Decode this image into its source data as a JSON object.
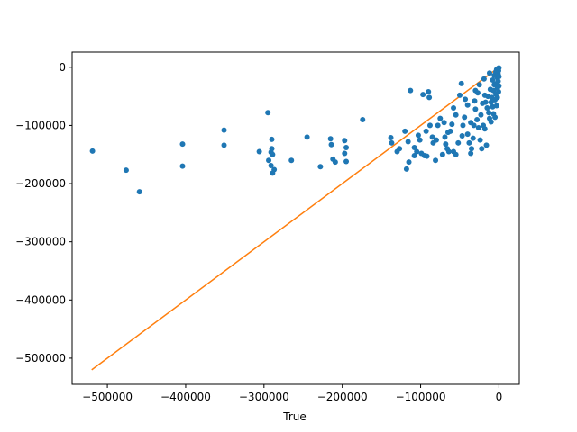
{
  "chart_data": {
    "type": "scatter",
    "title": "",
    "xlabel": "True",
    "ylabel": "",
    "xlim": [
      -545000,
      26000
    ],
    "ylim": [
      -545000,
      26000
    ],
    "grid": false,
    "colors": {
      "points": "#1f77b4",
      "line": "#ff7f0e",
      "axes": "#000000"
    },
    "xticks": [
      {
        "value": -500000,
        "label": "−500000"
      },
      {
        "value": -400000,
        "label": "−400000"
      },
      {
        "value": -300000,
        "label": "−300000"
      },
      {
        "value": -200000,
        "label": "−200000"
      },
      {
        "value": -100000,
        "label": "−100000"
      },
      {
        "value": 0,
        "label": "0"
      }
    ],
    "yticks": [
      {
        "value": 0,
        "label": "0"
      },
      {
        "value": -100000,
        "label": "−100000"
      },
      {
        "value": -200000,
        "label": "−200000"
      },
      {
        "value": -300000,
        "label": "−300000"
      },
      {
        "value": -400000,
        "label": "−400000"
      },
      {
        "value": -500000,
        "label": "−500000"
      }
    ],
    "reference_line": {
      "x": [
        -520000,
        0
      ],
      "y": [
        -520000,
        0
      ]
    },
    "series": [
      {
        "points": [
          [
            -519000,
            -144000
          ],
          [
            -476000,
            -177000
          ],
          [
            -459000,
            -214000
          ],
          [
            -404000,
            -132000
          ],
          [
            -404000,
            -170000
          ],
          [
            -351000,
            -108000
          ],
          [
            -351000,
            -134000
          ],
          [
            -295000,
            -78000
          ],
          [
            -306000,
            -145000
          ],
          [
            -291000,
            -146000
          ],
          [
            -294000,
            -160000
          ],
          [
            -289000,
            -150000
          ],
          [
            -291000,
            -169000
          ],
          [
            -287000,
            -176000
          ],
          [
            -289000,
            -182000
          ],
          [
            -290000,
            -124000
          ],
          [
            -290000,
            -140000
          ],
          [
            -265000,
            -160000
          ],
          [
            -245000,
            -120000
          ],
          [
            -228000,
            -171000
          ],
          [
            -215000,
            -123000
          ],
          [
            -214000,
            -133000
          ],
          [
            -212000,
            -158000
          ],
          [
            -209000,
            -163000
          ],
          [
            -197000,
            -126000
          ],
          [
            -195000,
            -138000
          ],
          [
            -197000,
            -148000
          ],
          [
            -195000,
            -162000
          ],
          [
            -174000,
            -90000
          ],
          [
            -138000,
            -121000
          ],
          [
            -137000,
            -130000
          ],
          [
            -127000,
            -140000
          ],
          [
            -118000,
            -175000
          ],
          [
            -115000,
            -163000
          ],
          [
            -116000,
            -128000
          ],
          [
            -113000,
            -40000
          ],
          [
            -108000,
            -152000
          ],
          [
            -108000,
            -138000
          ],
          [
            -103000,
            -117000
          ],
          [
            -101000,
            -125000
          ],
          [
            -97000,
            -47000
          ],
          [
            -99000,
            -148000
          ],
          [
            -95000,
            -152000
          ],
          [
            -92000,
            -153000
          ],
          [
            -90000,
            -42000
          ],
          [
            -89000,
            -52000
          ],
          [
            -88000,
            -100000
          ],
          [
            -84000,
            -130000
          ],
          [
            -81000,
            -160000
          ],
          [
            -80000,
            -125000
          ],
          [
            -78000,
            -100000
          ],
          [
            -75000,
            -88000
          ],
          [
            -72000,
            -150000
          ],
          [
            -69000,
            -120000
          ],
          [
            -68000,
            -132000
          ],
          [
            -66000,
            -140000
          ],
          [
            -64000,
            -145000
          ],
          [
            -62000,
            -110000
          ],
          [
            -60000,
            -98000
          ],
          [
            -58000,
            -70000
          ],
          [
            -58000,
            -145000
          ],
          [
            -55000,
            -150000
          ],
          [
            -52000,
            -130000
          ],
          [
            -50000,
            -48000
          ],
          [
            -48000,
            -28000
          ],
          [
            -46000,
            -100000
          ],
          [
            -44000,
            -86000
          ],
          [
            -43000,
            -55000
          ],
          [
            -40000,
            -115000
          ],
          [
            -38000,
            -130000
          ],
          [
            -36000,
            -148000
          ],
          [
            -35000,
            -140000
          ],
          [
            -33000,
            -122000
          ],
          [
            -32000,
            -100000
          ],
          [
            -31000,
            -58000
          ],
          [
            -30000,
            -72000
          ],
          [
            -28000,
            -90000
          ],
          [
            -27000,
            -44000
          ],
          [
            -25000,
            -30000
          ],
          [
            -24000,
            -125000
          ],
          [
            -23000,
            -82000
          ],
          [
            -22000,
            -140000
          ],
          [
            -20000,
            -100000
          ],
          [
            -19000,
            -20000
          ],
          [
            -18000,
            -106000
          ],
          [
            -17000,
            -60000
          ],
          [
            -16000,
            -134000
          ],
          [
            -15000,
            -70000
          ],
          [
            -14000,
            -50000
          ],
          [
            -13000,
            -78000
          ],
          [
            -12000,
            -88000
          ],
          [
            -12000,
            -10000
          ],
          [
            -11000,
            -38000
          ],
          [
            -10000,
            -60000
          ],
          [
            -10000,
            -94000
          ],
          [
            -9000,
            -52000
          ],
          [
            -8000,
            -22000
          ],
          [
            -8000,
            -68000
          ],
          [
            -7000,
            -40000
          ],
          [
            -7000,
            -80000
          ],
          [
            -6000,
            -14000
          ],
          [
            -6000,
            -30000
          ],
          [
            -5000,
            -56000
          ],
          [
            -5000,
            -86000
          ],
          [
            -4000,
            -8000
          ],
          [
            -4000,
            -46000
          ],
          [
            -3000,
            -4000
          ],
          [
            -3000,
            -28000
          ],
          [
            -3000,
            -66000
          ],
          [
            -2000,
            -18000
          ],
          [
            -2000,
            -36000
          ],
          [
            -2000,
            -52000
          ],
          [
            -1000,
            -2000
          ],
          [
            -1000,
            -12000
          ],
          [
            -1000,
            -24000
          ],
          [
            -500,
            -6000
          ],
          [
            -500,
            -42000
          ],
          [
            0,
            -1000
          ],
          [
            0,
            -16000
          ],
          [
            0,
            -32000
          ],
          [
            -55000,
            -82000
          ],
          [
            -47000,
            -118000
          ],
          [
            -36000,
            -95000
          ],
          [
            -26000,
            -104000
          ],
          [
            -21000,
            -62000
          ],
          [
            -65000,
            -112000
          ],
          [
            -70000,
            -95000
          ],
          [
            -85000,
            -120000
          ],
          [
            -93000,
            -110000
          ],
          [
            -105000,
            -145000
          ],
          [
            -120000,
            -110000
          ],
          [
            -130000,
            -145000
          ],
          [
            -40000,
            -65000
          ],
          [
            -30000,
            -40000
          ],
          [
            -18000,
            -48000
          ]
        ]
      }
    ]
  }
}
